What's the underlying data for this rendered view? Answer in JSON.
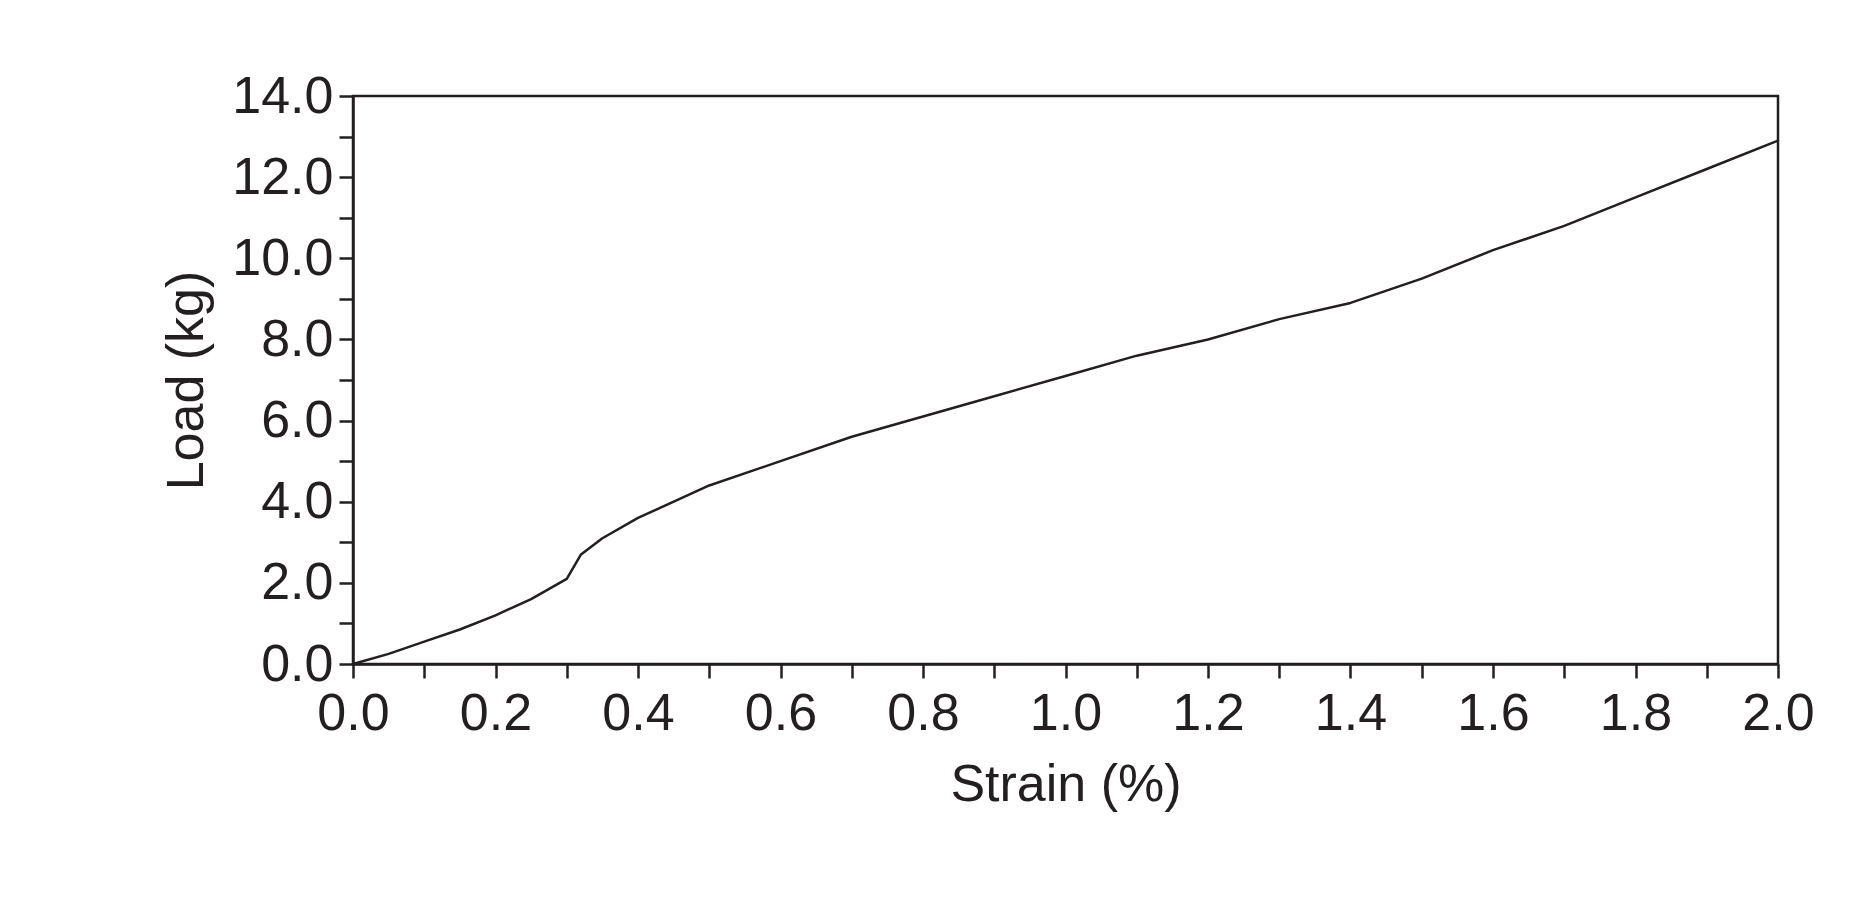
{
  "chart_data": {
    "type": "line",
    "xlabel": "Strain (%)",
    "ylabel": "Load (kg)",
    "x": [
      0,
      0.05,
      0.1,
      0.15,
      0.2,
      0.25,
      0.3,
      0.32,
      0.35,
      0.4,
      0.5,
      0.6,
      0.7,
      0.8,
      0.9,
      1.0,
      1.1,
      1.2,
      1.3,
      1.4,
      1.5,
      1.6,
      1.7,
      1.8,
      1.9,
      2.0
    ],
    "series": [
      {
        "color": "#231f20",
        "values": [
          0,
          0.25,
          0.55,
          0.85,
          1.2,
          1.6,
          2.1,
          2.7,
          3.1,
          3.6,
          4.4,
          5.0,
          5.6,
          6.1,
          6.6,
          7.1,
          7.6,
          8.0,
          8.5,
          8.9,
          9.5,
          10.2,
          10.8,
          11.5,
          12.2,
          12.9
        ]
      }
    ],
    "xlim": [
      0,
      2.0
    ],
    "ylim": [
      0,
      14.0
    ],
    "xticks": [
      {
        "value": 0,
        "label": "0.0"
      },
      {
        "value": 0.1,
        "label": null
      },
      {
        "value": 0.2,
        "label": "0.2"
      },
      {
        "value": 0.3,
        "label": null
      },
      {
        "value": 0.4,
        "label": "0.4"
      },
      {
        "value": 0.5,
        "label": null
      },
      {
        "value": 0.6,
        "label": "0.6"
      },
      {
        "value": 0.7,
        "label": null
      },
      {
        "value": 0.8,
        "label": "0.8"
      },
      {
        "value": 0.9,
        "label": null
      },
      {
        "value": 1.0,
        "label": "1.0"
      },
      {
        "value": 1.1,
        "label": null
      },
      {
        "value": 1.2,
        "label": "1.2"
      },
      {
        "value": 1.3,
        "label": null
      },
      {
        "value": 1.4,
        "label": "1.4"
      },
      {
        "value": 1.5,
        "label": null
      },
      {
        "value": 1.6,
        "label": "1.6"
      },
      {
        "value": 1.7,
        "label": null
      },
      {
        "value": 1.8,
        "label": "1.8"
      },
      {
        "value": 1.9,
        "label": null
      },
      {
        "value": 2.0,
        "label": "2.0"
      }
    ],
    "yticks": [
      {
        "value": 0,
        "label": "0.0"
      },
      {
        "value": 1,
        "label": null
      },
      {
        "value": 2,
        "label": "2.0"
      },
      {
        "value": 3,
        "label": null
      },
      {
        "value": 4,
        "label": "4.0"
      },
      {
        "value": 5,
        "label": null
      },
      {
        "value": 6,
        "label": "6.0"
      },
      {
        "value": 7,
        "label": null
      },
      {
        "value": 8,
        "label": "8.0"
      },
      {
        "value": 9,
        "label": null
      },
      {
        "value": 10,
        "label": "10.0"
      },
      {
        "value": 11,
        "label": null
      },
      {
        "value": 12,
        "label": "12.0"
      },
      {
        "value": 13,
        "label": null
      },
      {
        "value": 14,
        "label": "14.0"
      }
    ],
    "grid": false,
    "marker": "none",
    "line_style": "solid"
  }
}
